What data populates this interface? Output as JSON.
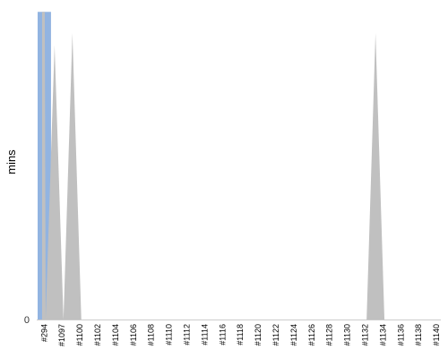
{
  "chart_data": {
    "type": "area",
    "title": "",
    "xlabel": "",
    "ylabel": "mins",
    "y_tick_labels": [
      "0"
    ],
    "categories": [
      "#294",
      "#1097",
      "#1100",
      "#1102",
      "#1104",
      "#1106",
      "#1108",
      "#1110",
      "#1112",
      "#1114",
      "#1116",
      "#1118",
      "#1120",
      "#1122",
      "#1124",
      "#1126",
      "#1128",
      "#1130",
      "#1132",
      "#1134",
      "#1136",
      "#1138",
      "#1140"
    ],
    "ylim": [
      0,
      1
    ],
    "grid": false,
    "legend": "none",
    "series": [
      {
        "color": "#c0c0c0",
        "points": [
          {
            "x": 0.3,
            "y": 1.02
          },
          {
            "x": 0.45,
            "y": 1.02
          },
          {
            "x": 0.5,
            "y": 0.0
          },
          {
            "x": 1.0,
            "y": 0.91
          },
          {
            "x": 1.5,
            "y": 0.0
          },
          {
            "x": 2.0,
            "y": 0.95
          },
          {
            "x": 2.5,
            "y": 0.0
          },
          {
            "x": 18.5,
            "y": 0.0
          },
          {
            "x": 19.0,
            "y": 0.95
          },
          {
            "x": 19.5,
            "y": 0.0
          }
        ]
      }
    ],
    "highlight": {
      "color": "#92b4e1",
      "category": "#294",
      "value": 1.02
    }
  }
}
